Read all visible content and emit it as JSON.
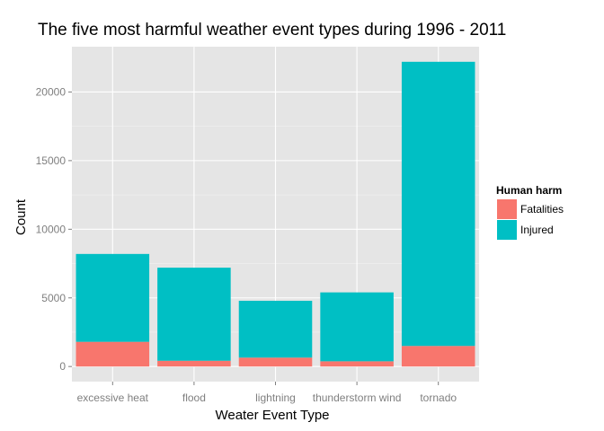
{
  "chart_data": {
    "type": "bar",
    "stacked": true,
    "title": "The five most harmful weather event types during 1996 - 2011",
    "xlabel": "Weater Event Type",
    "ylabel": "Count",
    "categories": [
      "excessive heat",
      "flood",
      "lightning",
      "thunderstorm wind",
      "tornado"
    ],
    "series": [
      {
        "name": "Fatalities",
        "values": [
          1800,
          420,
          650,
          380,
          1500
        ],
        "color": "#F8766D"
      },
      {
        "name": "Injured",
        "values": [
          6400,
          6780,
          4140,
          5020,
          20700
        ],
        "color": "#00BFC4"
      }
    ],
    "ylim": [
      -1100,
      23300
    ],
    "yticks": [
      0,
      5000,
      10000,
      15000,
      20000
    ],
    "ytick_labels": [
      "0",
      "5000",
      "10000",
      "15000",
      "20000"
    ],
    "grid": true,
    "legend": {
      "title": "Human harm",
      "position": "right"
    },
    "panel_background": "#E5E5E5",
    "grid_color": "#FFFFFF"
  }
}
